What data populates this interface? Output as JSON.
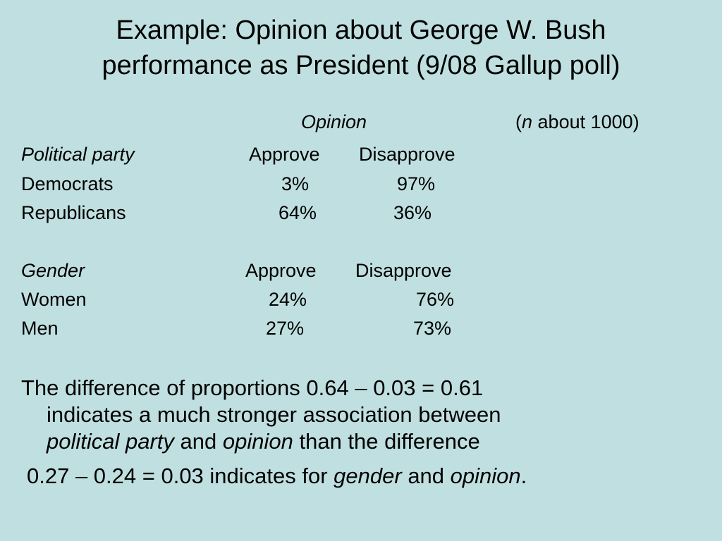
{
  "title": {
    "line1": "Example: Opinion about George W. Bush",
    "line2": "performance as President (9/08 Gallup poll)"
  },
  "header": {
    "opinion": "Opinion",
    "n_open": "(",
    "n_letter": "n",
    "n_rest": " about 1000)"
  },
  "party_table": {
    "heading": "Political party",
    "col_approve": "Approve",
    "col_disapprove": "Disapprove",
    "rows": [
      {
        "label": "Democrats",
        "approve": "3%",
        "disapprove": "97%"
      },
      {
        "label": "Republicans",
        "approve": "64%",
        "disapprove": "36%"
      }
    ]
  },
  "gender_table": {
    "heading": "Gender",
    "col_approve": "Approve",
    "col_disapprove": "Disapprove",
    "rows": [
      {
        "label": "Women",
        "approve": "24%",
        "disapprove": "76%"
      },
      {
        "label": "Men",
        "approve": "27%",
        "disapprove": "73%"
      }
    ]
  },
  "conclusion": {
    "p1": "The difference of proportions 0.64 – 0.03 = 0.61",
    "p2": "indicates a much stronger association between",
    "p3_a": "political party",
    "p3_b": " and ",
    "p3_c": "opinion",
    "p3_d": " than the difference",
    "p4_a": "0.27 – 0.24 = 0.03 indicates for ",
    "p4_b": "gender",
    "p4_c": " and ",
    "p4_d": "opinion",
    "p4_e": "."
  }
}
